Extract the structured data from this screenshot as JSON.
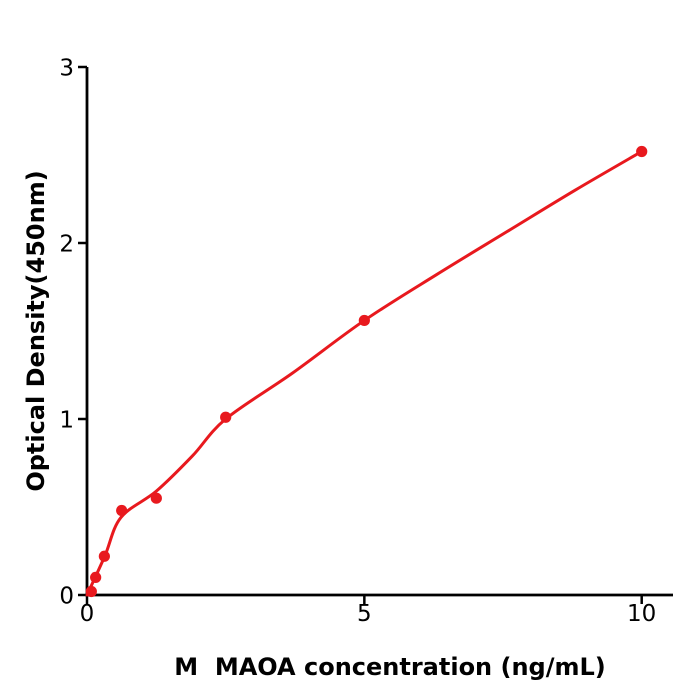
{
  "chart_data": {
    "type": "scatter",
    "title": "",
    "xlabel": "M  MAOA concentration (ng/mL)",
    "ylabel": "Optical Density(450nm)",
    "xlim": [
      0,
      10
    ],
    "ylim": [
      0,
      3
    ],
    "x_tick_labels": [
      "0",
      "5",
      "10"
    ],
    "x_tick_values": [
      0,
      5,
      10
    ],
    "y_tick_labels": [
      "0",
      "1",
      "2",
      "3"
    ],
    "y_tick_values": [
      0,
      1,
      2,
      3
    ],
    "grid": false,
    "legend_position": "none",
    "point_color": "#e8191e",
    "curve_color": "#e8191e",
    "axis_color": "#000000",
    "points": [
      {
        "x": 0.078,
        "y": 0.02
      },
      {
        "x": 0.156,
        "y": 0.1
      },
      {
        "x": 0.313,
        "y": 0.22
      },
      {
        "x": 0.625,
        "y": 0.48
      },
      {
        "x": 1.25,
        "y": 0.55
      },
      {
        "x": 2.5,
        "y": 1.01
      },
      {
        "x": 5,
        "y": 1.56
      },
      {
        "x": 10,
        "y": 2.52
      }
    ],
    "trend_curve": [
      [
        0,
        0
      ],
      [
        0.32,
        0.22
      ],
      [
        0.61,
        0.44
      ],
      [
        1.25,
        0.59
      ],
      [
        1.9,
        0.79
      ],
      [
        2.5,
        1.0
      ],
      [
        3.7,
        1.26
      ],
      [
        5,
        1.56
      ],
      [
        6.3,
        1.82
      ],
      [
        7.6,
        2.07
      ],
      [
        8.8,
        2.3
      ],
      [
        10,
        2.52
      ]
    ]
  }
}
